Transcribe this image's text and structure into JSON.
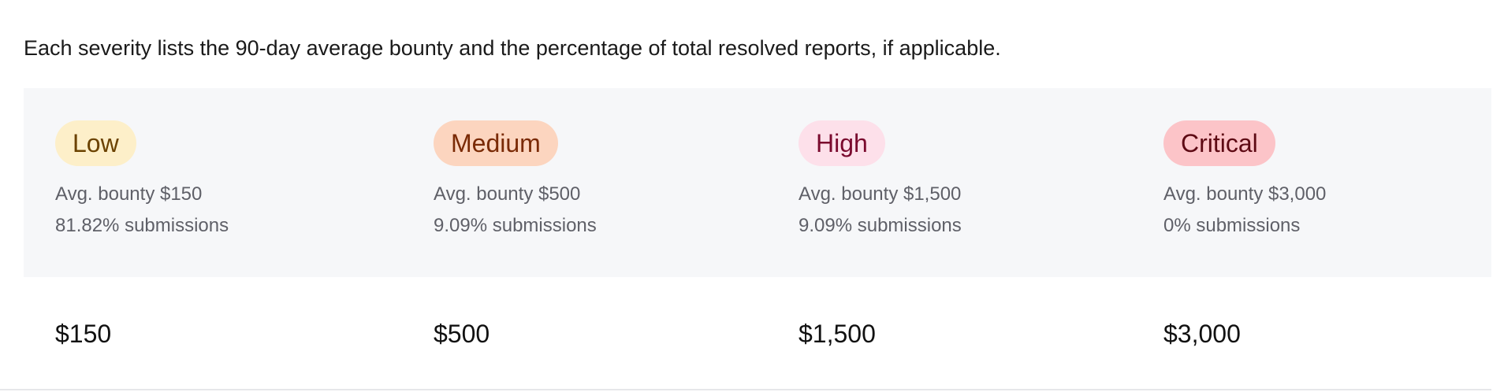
{
  "intro": "Each severity lists the 90-day average bounty and the percentage of total resolved reports, if applicable.",
  "severities": [
    {
      "label": "Low",
      "avg": "Avg. bounty $150",
      "share": "81.82% submissions",
      "value": "$150",
      "bg": "#fdefc9",
      "fg": "#6b4200"
    },
    {
      "label": "Medium",
      "avg": "Avg. bounty $500",
      "share": "9.09% submissions",
      "value": "$500",
      "bg": "#fcd5bf",
      "fg": "#7a2a05"
    },
    {
      "label": "High",
      "avg": "Avg. bounty $1,500",
      "share": "9.09% submissions",
      "value": "$1,500",
      "bg": "#fde0ea",
      "fg": "#7a0a2e"
    },
    {
      "label": "Critical",
      "avg": "Avg. bounty $3,000",
      "share": "0% submissions",
      "value": "$3,000",
      "bg": "#fcc4c8",
      "fg": "#5e0a14"
    }
  ]
}
